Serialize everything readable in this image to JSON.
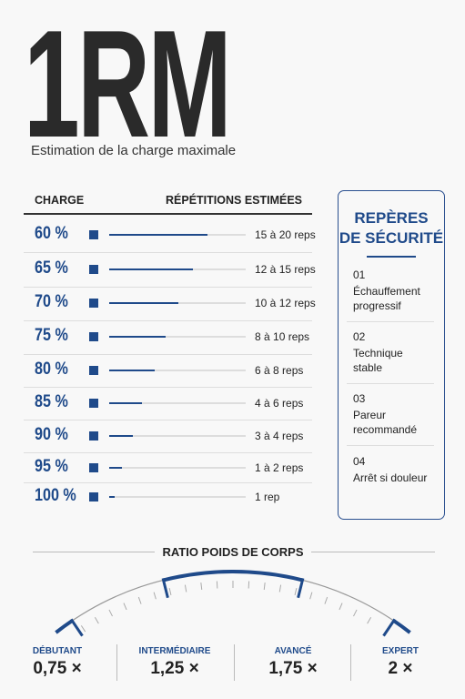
{
  "header": {
    "title": "1RM",
    "subtitle": "Estimation de la charge maximale"
  },
  "table": {
    "headers": [
      "CHARGE",
      "RÉPÉTITIONS ESTIMÉES"
    ],
    "rows": [
      [
        "60 %",
        "15 à 20 reps"
      ],
      [
        "65 %",
        "12 à 15 reps"
      ],
      [
        "70 %",
        "10 à 12 reps"
      ],
      [
        "75 %",
        "8 à 10 reps"
      ],
      [
        "80 %",
        "6 à 8 reps"
      ],
      [
        "85 %",
        "4 à 6 reps"
      ],
      [
        "90 %",
        "3 à 4 reps"
      ],
      [
        "95 %",
        "1 à 2 reps"
      ],
      [
        "100 %",
        "1 rep"
      ]
    ]
  },
  "safety": {
    "title_lines": [
      "REPÈRES",
      "DE SÉCURITÉ"
    ],
    "items": [
      {
        "number": "01",
        "text": "Échauffement progressif"
      },
      {
        "number": "02",
        "text": "Technique stable"
      },
      {
        "number": "03",
        "text": "Pareur recommandé"
      },
      {
        "number": "04",
        "text": "Arrêt si douleur"
      }
    ]
  },
  "ratio": {
    "title": "RATIO POIDS DE CORPS",
    "levels": [
      {
        "label": "DÉBUTANT",
        "value": "0,75 ×"
      },
      {
        "label": "INTERMÉDIAIRE",
        "value": "1,25 ×"
      },
      {
        "label": "AVANCÉ",
        "value": "1,75 ×"
      },
      {
        "label": "EXPERT",
        "value": "2 ×"
      }
    ]
  }
}
